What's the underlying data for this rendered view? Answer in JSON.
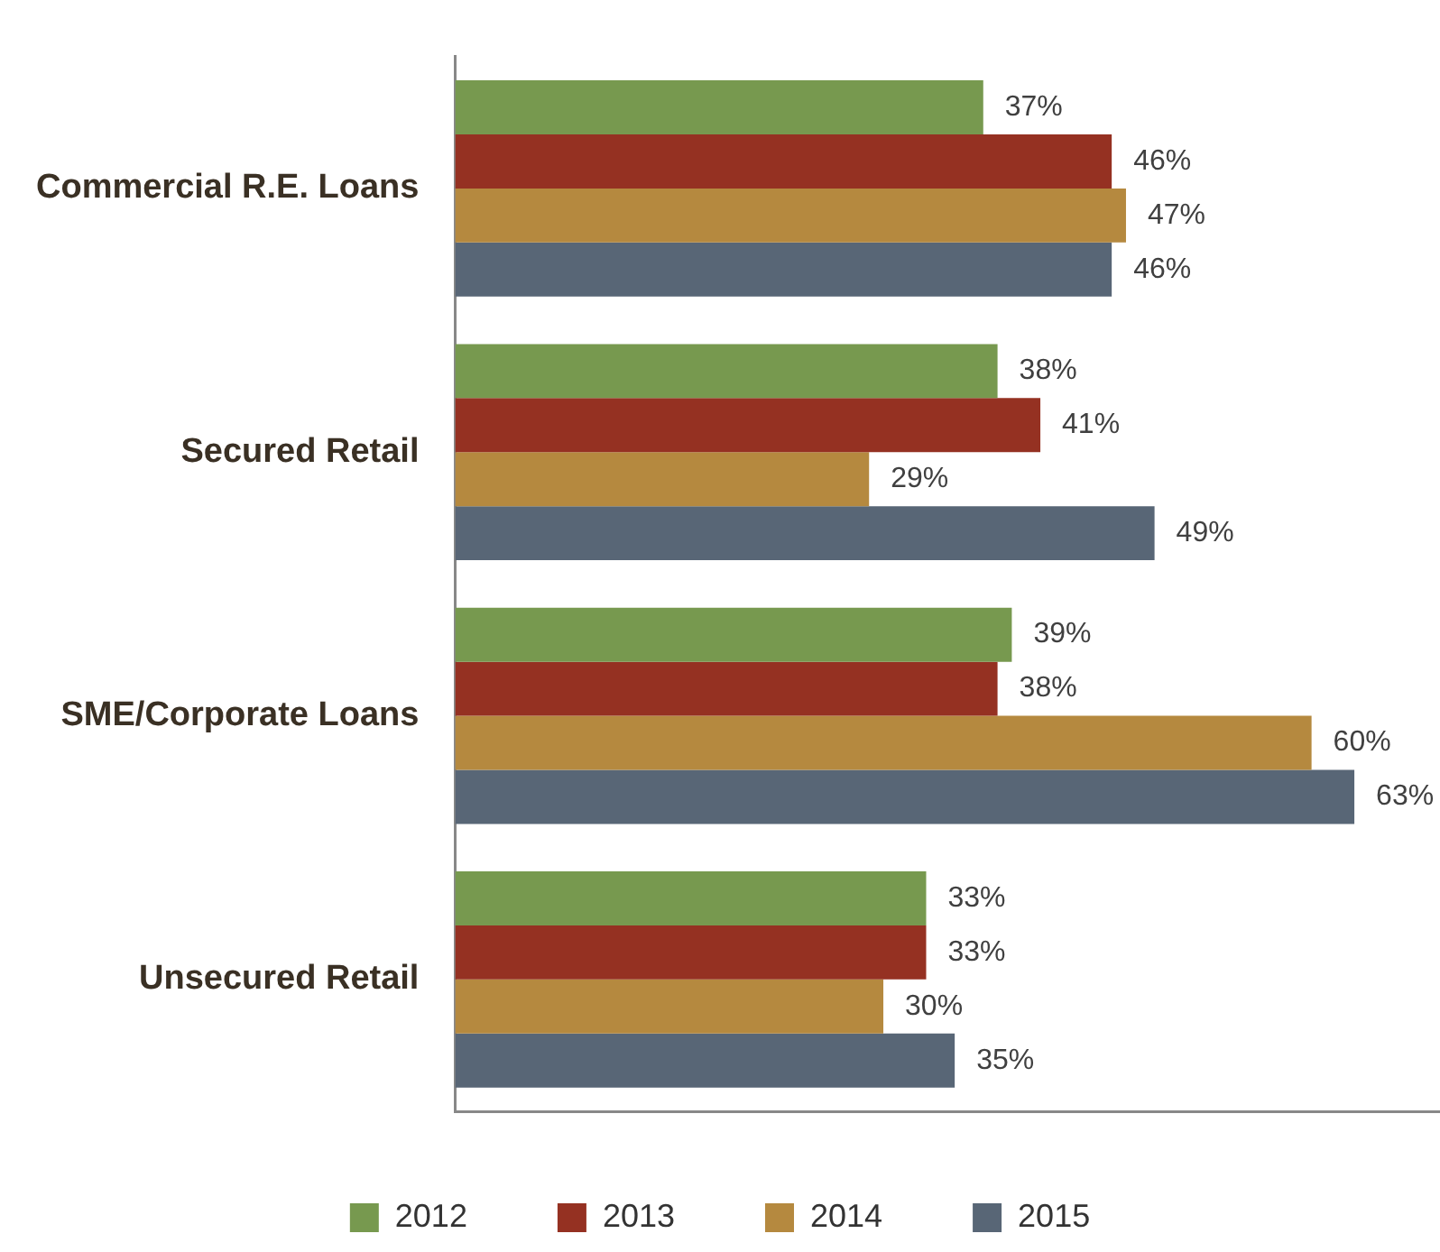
{
  "chart_data": {
    "type": "bar",
    "orientation": "horizontal",
    "categories": [
      "Commercial R.E. Loans",
      "Secured Retail",
      "SME/Corporate Loans",
      "Unsecured Retail"
    ],
    "series": [
      {
        "name": "2012",
        "color": "#77994f",
        "values": [
          37,
          38,
          39,
          33
        ],
        "value_labels": [
          "37%",
          "38%",
          "39%",
          "33%"
        ]
      },
      {
        "name": "2013",
        "color": "#953122",
        "values": [
          46,
          41,
          38,
          33
        ],
        "value_labels": [
          "46%",
          "41%",
          "38%",
          "33%"
        ]
      },
      {
        "name": "2014",
        "color": "#b5893f",
        "values": [
          47,
          29,
          60,
          30
        ],
        "value_labels": [
          "47%",
          "29%",
          "60%",
          "30%"
        ]
      },
      {
        "name": "2015",
        "color": "#586676",
        "values": [
          46,
          49,
          63,
          35
        ],
        "value_labels": [
          "46%",
          "49%",
          "63%",
          "35%"
        ]
      }
    ],
    "xlim": [
      0,
      69
    ],
    "tick_labels": "y",
    "grid": false,
    "legend": "bottom"
  }
}
